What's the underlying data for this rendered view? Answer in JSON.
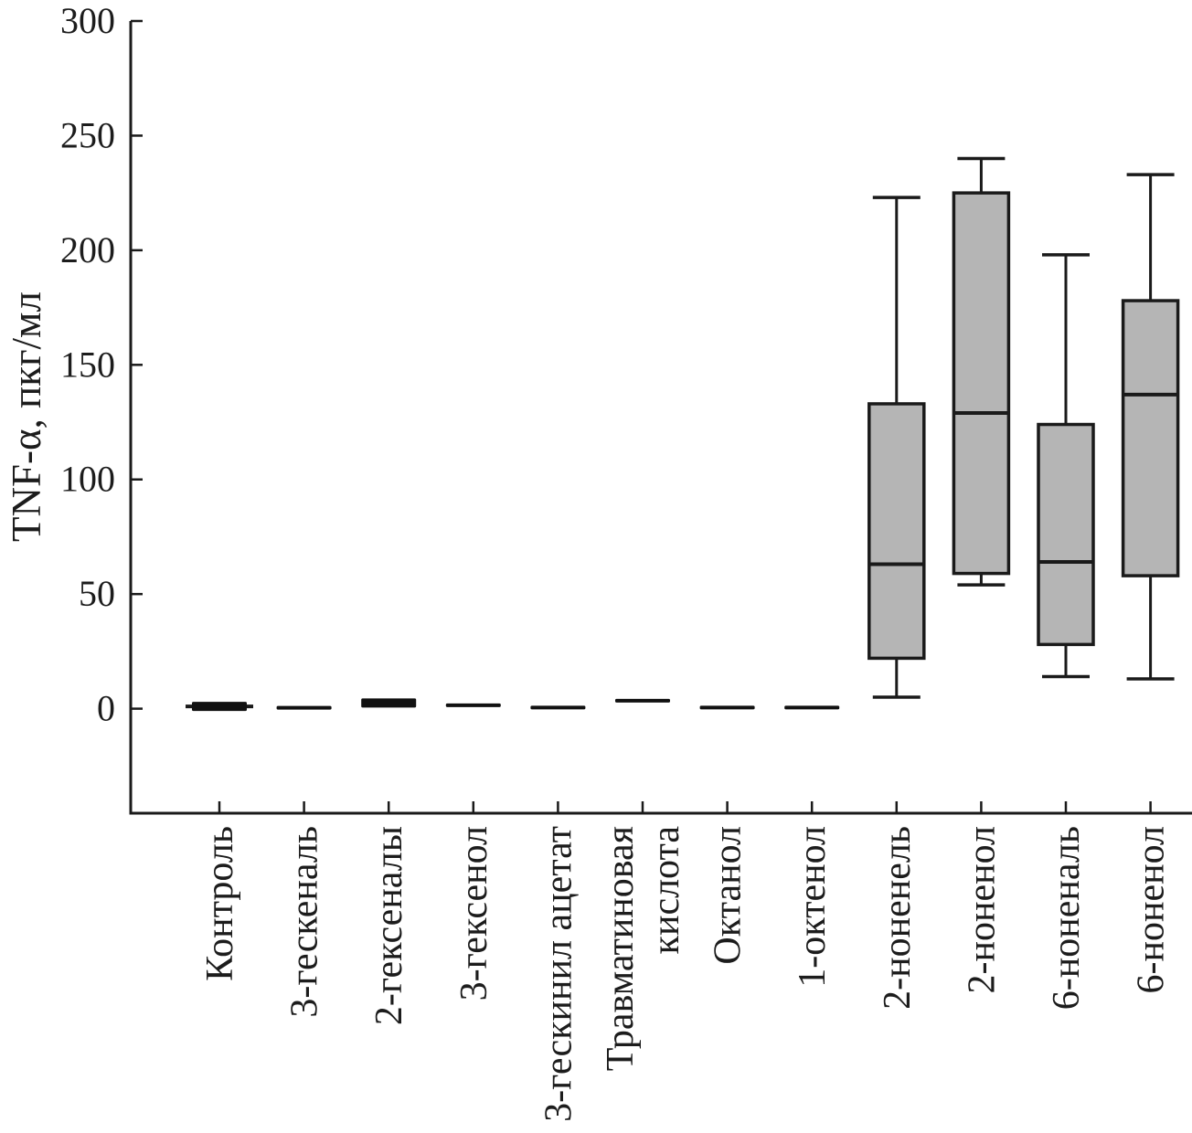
{
  "chart_data": {
    "type": "boxplot",
    "title": "",
    "xlabel": "",
    "ylabel": "TNF-α, пкг/мл",
    "ylim": [
      -45.6,
      300
    ],
    "yticks": [
      0,
      50,
      100,
      150,
      200,
      250,
      300
    ],
    "grid": false,
    "legend": false,
    "colors": {
      "box_fill": "#b5b5b5",
      "line": "#1a1a1a",
      "text": "#1c1c1c",
      "collapsed_fill": "#111111",
      "background": "#ffffff"
    },
    "categories": [
      "Контроль",
      "3-гескеналь",
      "2-гексеналы",
      "3-гексенол",
      "3-гескинил ацетат",
      "Травматиновая кислота",
      "Октанол",
      "1-октенол",
      "2-ноненель",
      "2-ноненол",
      "6-ноненаль",
      "6-ноненол"
    ],
    "series": [
      {
        "label": "Контроль",
        "low": -1,
        "q1": -1,
        "median": 1,
        "q3": 3,
        "high": 3,
        "collapsed": true,
        "median_cap": true
      },
      {
        "label": "3-гескеналь",
        "low": -0.2,
        "q1": -0.2,
        "median": 0.5,
        "q3": 1.2,
        "high": 1.2,
        "collapsed": true
      },
      {
        "label": "2-гексеналы",
        "low": 0.5,
        "q1": 0.5,
        "median": 2.5,
        "q3": 4.5,
        "high": 4.5,
        "collapsed": true
      },
      {
        "label": "3-гексенол",
        "low": 0.7,
        "q1": 0.7,
        "median": 1.5,
        "q3": 2.3,
        "high": 2.3,
        "collapsed": true
      },
      {
        "label": "3-гескинил ацетат",
        "low": -0.3,
        "q1": -0.3,
        "median": 0.5,
        "q3": 1.3,
        "high": 1.3,
        "collapsed": true
      },
      {
        "label": "Травматиновая кислота",
        "label_lines": [
          "Травматиновая",
          "кислота"
        ],
        "low": 2.7,
        "q1": 2.7,
        "median": 3.5,
        "q3": 4.3,
        "high": 4.3,
        "collapsed": true
      },
      {
        "label": "Октанол",
        "low": -0.3,
        "q1": -0.3,
        "median": 0.5,
        "q3": 1.3,
        "high": 1.3,
        "collapsed": true
      },
      {
        "label": "1-октенол",
        "low": -0.3,
        "q1": -0.3,
        "median": 0.5,
        "q3": 1.3,
        "high": 1.3,
        "collapsed": true
      },
      {
        "label": "2-ноненель",
        "low": 5,
        "q1": 22,
        "median": 63,
        "q3": 133,
        "high": 223
      },
      {
        "label": "2-ноненол",
        "low": 54,
        "q1": 59,
        "median": 129,
        "q3": 225,
        "high": 240
      },
      {
        "label": "6-ноненаль",
        "low": 14,
        "q1": 28,
        "median": 64,
        "q3": 124,
        "high": 198
      },
      {
        "label": "6-ноненол",
        "low": 13,
        "q1": 58,
        "median": 137,
        "q3": 178,
        "high": 233
      }
    ]
  }
}
